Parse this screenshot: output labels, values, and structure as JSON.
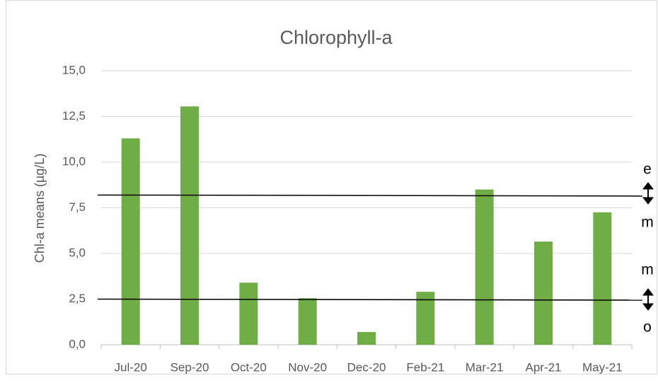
{
  "chart_data": {
    "type": "bar",
    "title": "Chlorophyll-a",
    "y_label": "Chl-a  means (µg/L)",
    "categories": [
      "Jul-20",
      "Sep-20",
      "Oct-20",
      "Nov-20",
      "Dec-20",
      "Feb-21",
      "Mar-21",
      "Apr-21",
      "May-21"
    ],
    "values": [
      11.3,
      13.05,
      3.4,
      2.55,
      0.7,
      2.9,
      8.5,
      5.65,
      7.25
    ],
    "color": "#70ad47",
    "ylim": [
      0,
      15
    ],
    "yticks": [
      {
        "value": 0,
        "label": "0,0"
      },
      {
        "value": 2.5,
        "label": "2,5"
      },
      {
        "value": 5,
        "label": "5,0"
      },
      {
        "value": 7.5,
        "label": "7,5"
      },
      {
        "value": 10,
        "label": "10,0"
      },
      {
        "value": 12.5,
        "label": "12,5"
      },
      {
        "value": 15,
        "label": "15,0"
      }
    ],
    "grid": true,
    "reference_lines": [
      8.2,
      2.5
    ],
    "annotations": [
      "e",
      "m",
      "m",
      "o"
    ]
  }
}
